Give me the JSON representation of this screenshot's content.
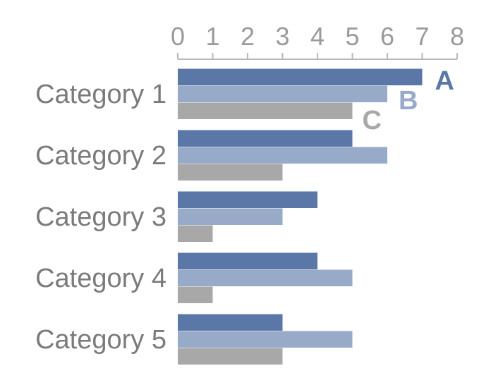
{
  "chart_data": {
    "type": "bar",
    "orientation": "horizontal",
    "categories": [
      "Category 1",
      "Category 2",
      "Category 3",
      "Category 4",
      "Category 5"
    ],
    "series": [
      {
        "name": "A",
        "color": "#5a77a8",
        "values": [
          7,
          5,
          4,
          4,
          3
        ]
      },
      {
        "name": "B",
        "color": "#97aac8",
        "values": [
          6,
          6,
          3,
          5,
          5
        ]
      },
      {
        "name": "C",
        "color": "#a8a8a8",
        "values": [
          5,
          3,
          1,
          1,
          3
        ]
      }
    ],
    "xlim": [
      0,
      8
    ],
    "xticks": [
      0,
      1,
      2,
      3,
      4,
      5,
      6,
      7,
      8
    ],
    "axis_position": "top",
    "grid": false,
    "legend": "inline labels at ends of first category's bars",
    "title": "",
    "xlabel": "",
    "ylabel": ""
  },
  "colors": {
    "axis": "#b8b8b8",
    "tick_text": "#9a9a9a",
    "category_text": "#7b7b7b"
  }
}
